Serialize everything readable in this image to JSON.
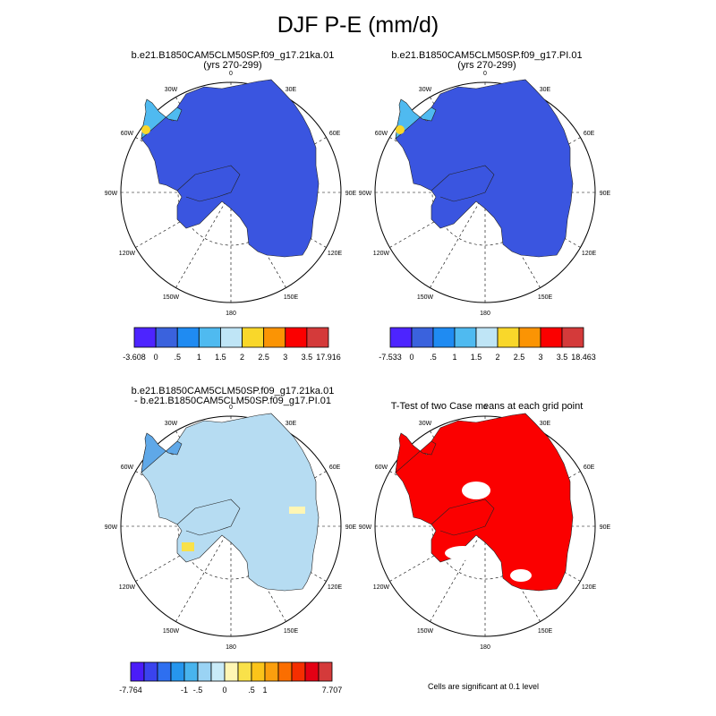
{
  "title": "DJF P-E (mm/d)",
  "panels": [
    {
      "title_line1": "b.e21.B1850CAM5CLM50SP.f09_g17.21ka.01",
      "title_line2": "(yrs 270-299)",
      "colorbar": {
        "colors": [
          "#4d24ff",
          "#3a62dd",
          "#1f8bf2",
          "#4fbaf0",
          "#bfe5f6",
          "#f9d72a",
          "#fb9404",
          "#fb0000",
          "#d43a3a"
        ],
        "labels": [
          "-3.608",
          "0",
          ".5",
          "1",
          "1.5",
          "2",
          "2.5",
          "3",
          "3.5",
          "17.916"
        ]
      }
    },
    {
      "title_line1": "b.e21.B1850CAM5CLM50SP.f09_g17.PI.01",
      "title_line2": "(yrs 270-299)",
      "colorbar": {
        "colors": [
          "#4d24ff",
          "#3a62dd",
          "#1f8bf2",
          "#4fbaf0",
          "#bfe5f6",
          "#f9d72a",
          "#fb9404",
          "#fb0000",
          "#d43a3a"
        ],
        "labels": [
          "-7.533",
          "0",
          ".5",
          "1",
          "1.5",
          "2",
          "2.5",
          "3",
          "3.5",
          "18.463"
        ]
      }
    },
    {
      "title_line1": "b.e21.B1850CAM5CLM50SP.f09_g17.21ka.01",
      "title_line2": "- b.e21.B1850CAM5CLM50SP.f09_g17.PI.01",
      "colorbar": {
        "colors": [
          "#4b1cf8",
          "#3a43ee",
          "#2e6ff0",
          "#2696ee",
          "#48b4ee",
          "#9ad3f4",
          "#c9ebf8",
          "#fff6b4",
          "#f9e14a",
          "#fbc41a",
          "#fb9f0e",
          "#fb6e00",
          "#f52e00",
          "#e40014",
          "#d43a3a"
        ],
        "labels": [
          "-7.764",
          "-1",
          "-.5",
          "0",
          ".5",
          "1",
          "7.707"
        ]
      }
    },
    {
      "title_line1": "T-Test of two Case means at each grid point",
      "title_line2": ""
    }
  ],
  "longitude_labels": [
    "0",
    "30E",
    "60E",
    "90E",
    "120E",
    "150E",
    "180",
    "150W",
    "120W",
    "90W",
    "60W",
    "30W"
  ],
  "note": "Cells are significant at 0.1 level",
  "map_colors": {
    "panel1_fill": "#3a55e0",
    "panel2_fill": "#3a55e0",
    "panel3_fill": "#b6dcf2",
    "panel4_fill": "#fb0000"
  }
}
